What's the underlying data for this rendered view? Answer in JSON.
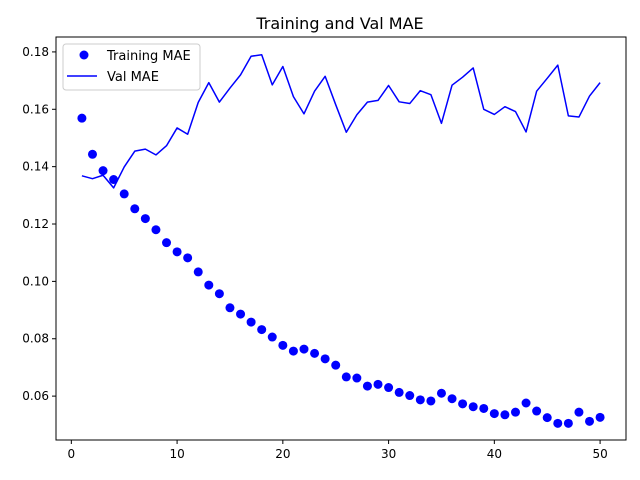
{
  "chart_data": {
    "type": "line",
    "title": "Training and Val MAE",
    "xlabel": "",
    "ylabel": "",
    "xlim": [
      -1.45,
      52.45
    ],
    "ylim": [
      0.0447,
      0.1852
    ],
    "xticks": [
      0,
      10,
      20,
      30,
      40,
      50
    ],
    "yticks": [
      0.06,
      0.08,
      0.1,
      0.12,
      0.14,
      0.16,
      0.18
    ],
    "ytick_labels": [
      "0.06",
      "0.08",
      "0.10",
      "0.12",
      "0.14",
      "0.16",
      "0.18"
    ],
    "grid": false,
    "legend_position": "top-left",
    "series": [
      {
        "name": "Training MAE",
        "style": "markers",
        "color": "#0000ff",
        "x": [
          1,
          2,
          3,
          4,
          5,
          6,
          7,
          8,
          9,
          10,
          11,
          12,
          13,
          14,
          15,
          16,
          17,
          18,
          19,
          20,
          21,
          22,
          23,
          24,
          25,
          26,
          27,
          28,
          29,
          30,
          31,
          32,
          33,
          34,
          35,
          36,
          37,
          38,
          39,
          40,
          41,
          42,
          43,
          44,
          45,
          46,
          47,
          48,
          49,
          50
        ],
        "values": [
          0.1569,
          0.1443,
          0.1386,
          0.1355,
          0.1305,
          0.1253,
          0.1219,
          0.118,
          0.1135,
          0.1103,
          0.1082,
          0.1033,
          0.0987,
          0.0957,
          0.0908,
          0.0886,
          0.0858,
          0.0832,
          0.0806,
          0.0777,
          0.0757,
          0.0764,
          0.0749,
          0.073,
          0.0708,
          0.0667,
          0.0663,
          0.0635,
          0.0641,
          0.063,
          0.0613,
          0.0602,
          0.0587,
          0.0583,
          0.061,
          0.0591,
          0.0573,
          0.0563,
          0.0557,
          0.0539,
          0.0535,
          0.0544,
          0.0576,
          0.0548,
          0.0525,
          0.0505,
          0.0505,
          0.0544,
          0.0512,
          0.0526
        ]
      },
      {
        "name": "Val MAE",
        "style": "line",
        "color": "#0000ff",
        "x": [
          1,
          2,
          3,
          4,
          5,
          6,
          7,
          8,
          9,
          10,
          11,
          12,
          13,
          14,
          15,
          16,
          17,
          18,
          19,
          20,
          21,
          22,
          23,
          24,
          25,
          26,
          27,
          28,
          29,
          30,
          31,
          32,
          33,
          34,
          35,
          36,
          37,
          38,
          39,
          40,
          41,
          42,
          43,
          44,
          45,
          46,
          47,
          48,
          49,
          50
        ],
        "values": [
          0.1368,
          0.1358,
          0.137,
          0.1326,
          0.1399,
          0.1454,
          0.1461,
          0.1441,
          0.1473,
          0.1535,
          0.1513,
          0.1624,
          0.1693,
          0.1625,
          0.1674,
          0.172,
          0.1785,
          0.179,
          0.1685,
          0.1749,
          0.1644,
          0.1584,
          0.1663,
          0.1715,
          0.1616,
          0.152,
          0.1581,
          0.1625,
          0.1631,
          0.1683,
          0.1626,
          0.162,
          0.1665,
          0.1651,
          0.1551,
          0.1684,
          0.1712,
          0.1744,
          0.16,
          0.1582,
          0.1609,
          0.1592,
          0.1521,
          0.1663,
          0.1708,
          0.1754,
          0.1577,
          0.1573,
          0.1646,
          0.1693
        ]
      }
    ]
  }
}
